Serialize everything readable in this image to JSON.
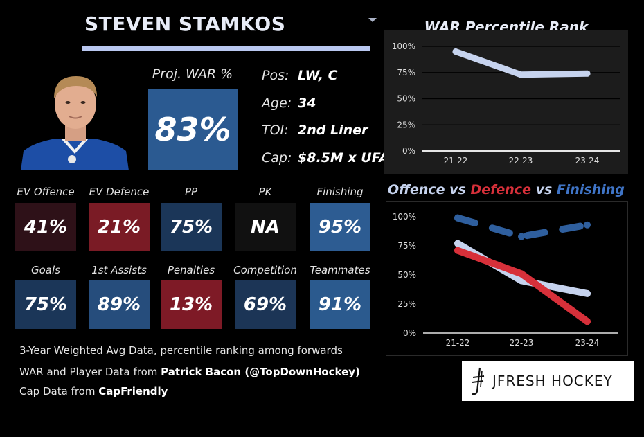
{
  "player": {
    "name": "STEVEN STAMKOS",
    "proj_war_label": "Proj. WAR %",
    "proj_war_value": "83%",
    "proj_war_color": "#2b5a91",
    "info": [
      {
        "key": "Pos:",
        "value": "LW, C"
      },
      {
        "key": "Age:",
        "value": "34"
      },
      {
        "key": "TOI:",
        "value": "2nd Liner"
      },
      {
        "key": "Cap:",
        "value": "$8.5M x UFA"
      }
    ]
  },
  "tiles_row1": [
    {
      "label": "EV Offence",
      "value": "41%",
      "color": "#2e1118"
    },
    {
      "label": "EV Defence",
      "value": "21%",
      "color": "#7a1b25"
    },
    {
      "label": "PP",
      "value": "75%",
      "color": "#1b3658"
    },
    {
      "label": "PK",
      "value": "NA",
      "color": "#111111"
    },
    {
      "label": "Finishing",
      "value": "95%",
      "color": "#2d5c92"
    }
  ],
  "tiles_row2": [
    {
      "label": "Goals",
      "value": "75%",
      "color": "#1b3658"
    },
    {
      "label": "1st Assists",
      "value": "89%",
      "color": "#264d7c"
    },
    {
      "label": "Penalties",
      "value": "13%",
      "color": "#7e1a26"
    },
    {
      "label": "Competition",
      "value": "69%",
      "color": "#1c3556"
    },
    {
      "label": "Teammates",
      "value": "91%",
      "color": "#2b5a8e"
    }
  ],
  "footnotes": {
    "line1": "3-Year Weighted Avg Data, percentile ranking among forwards",
    "line2_prefix": "WAR and Player Data from ",
    "line2_bold": "Patrick Bacon (@TopDownHockey)",
    "line3_prefix": "Cap Data from ",
    "line3_bold": "CapFriendly"
  },
  "logo": {
    "text": "JFRESH HOCKEY",
    "icon": "jfresh-logo-icon"
  },
  "chart_data": [
    {
      "type": "line",
      "title": "WAR Percentile Rank",
      "categories": [
        "21-22",
        "22-23",
        "23-24"
      ],
      "y_ticks": [
        "0%",
        "25%",
        "50%",
        "75%",
        "100%"
      ],
      "ylim": [
        0,
        100
      ],
      "grid": true,
      "series": [
        {
          "values": [
            95,
            73,
            74
          ],
          "color": "#c6d3ee",
          "style": "solid"
        }
      ]
    },
    {
      "type": "line",
      "title_parts": [
        {
          "text": "Offence",
          "color": "#c6d3ee"
        },
        {
          "text": " vs ",
          "color": "#c6d3ee"
        },
        {
          "text": "Defence",
          "color": "#d7303a"
        },
        {
          "text": " vs ",
          "color": "#c6d3ee"
        },
        {
          "text": "Finishing",
          "color": "#3f74c6"
        }
      ],
      "categories": [
        "21-22",
        "22-23",
        "23-24"
      ],
      "y_ticks": [
        "0%",
        "25%",
        "50%",
        "75%",
        "100%"
      ],
      "ylim": [
        0,
        100
      ],
      "grid": false,
      "series": [
        {
          "values": [
            99,
            83,
            93
          ],
          "color": "#2f5f9e",
          "style": "dashed"
        },
        {
          "values": [
            77,
            45,
            34
          ],
          "color": "#c6d3ee",
          "style": "solid"
        },
        {
          "values": [
            71,
            51,
            10
          ],
          "color": "#d7303a",
          "style": "solid"
        }
      ]
    }
  ]
}
